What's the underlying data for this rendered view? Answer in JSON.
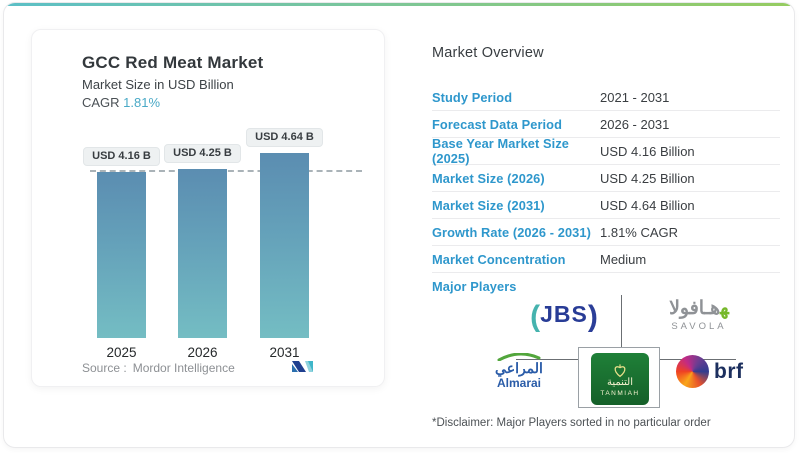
{
  "chart": {
    "title": "GCC Red Meat Market",
    "subtitle": "Market Size in USD Billion",
    "cagr_label": "CAGR ",
    "cagr_value": "1.81%",
    "source_label": "Source :",
    "source_value": "Mordor Intelligence"
  },
  "chart_data": {
    "type": "bar",
    "categories": [
      "2025",
      "2026",
      "2031"
    ],
    "values": [
      4.16,
      4.25,
      4.64
    ],
    "bar_labels": [
      "USD 4.16 B",
      "USD 4.25 B",
      "USD 4.64 B"
    ],
    "title": "GCC Red Meat Market",
    "ylabel": "Market Size in USD Billion",
    "ylim": [
      0,
      4.64
    ],
    "baseline_dashed_at_value": 4.16,
    "grid": false,
    "legend": "none",
    "bar_gradient": [
      "#5b8db1",
      "#74bdc3"
    ]
  },
  "overview": {
    "title": "Market Overview",
    "rows": [
      {
        "label": "Study Period",
        "value": "2021 - 2031"
      },
      {
        "label": "Forecast Data Period",
        "value": "2026 - 2031"
      },
      {
        "label": "Base Year Market Size (2025)",
        "value": "USD 4.16 Billion"
      },
      {
        "label": "Market Size (2026)",
        "value": "USD 4.25 Billion"
      },
      {
        "label": "Market Size (2031)",
        "value": "USD 4.64 Billion"
      },
      {
        "label": "Growth Rate (2026 - 2031)",
        "value": "1.81% CAGR"
      },
      {
        "label": "Market Concentration",
        "value": "Medium"
      }
    ],
    "major_players_label": "Major Players",
    "disclaimer": "*Disclaimer: Major Players sorted in no particular order"
  },
  "major_players": {
    "jbs": {
      "name": "JBS",
      "text": "JBS",
      "paren_left": "(",
      "paren_right": ")"
    },
    "savola": {
      "name": "Savola",
      "arabic": "هـافول",
      "arabic_tri": "ا",
      "latin": "SAVOLA"
    },
    "almarai": {
      "name": "Almarai",
      "arabic": "المراعي",
      "latin": "Almarai"
    },
    "tanmiah": {
      "name": "Tanmiah",
      "arabic": "التنمية",
      "latin": "TANMIAH"
    },
    "brf": {
      "name": "BRF",
      "latin": "brf"
    }
  },
  "colors": {
    "accent_blue_label": "#2e97cc",
    "cagr_teal": "#4aa9c6",
    "bar_top": "#5b8db1",
    "bar_bottom": "#74bdc3",
    "dashed_line": "#aab3b8",
    "tanmiah_green": "#1f8038",
    "jbs_blue": "#283c96",
    "almarai_blue": "#2a5ca8"
  }
}
